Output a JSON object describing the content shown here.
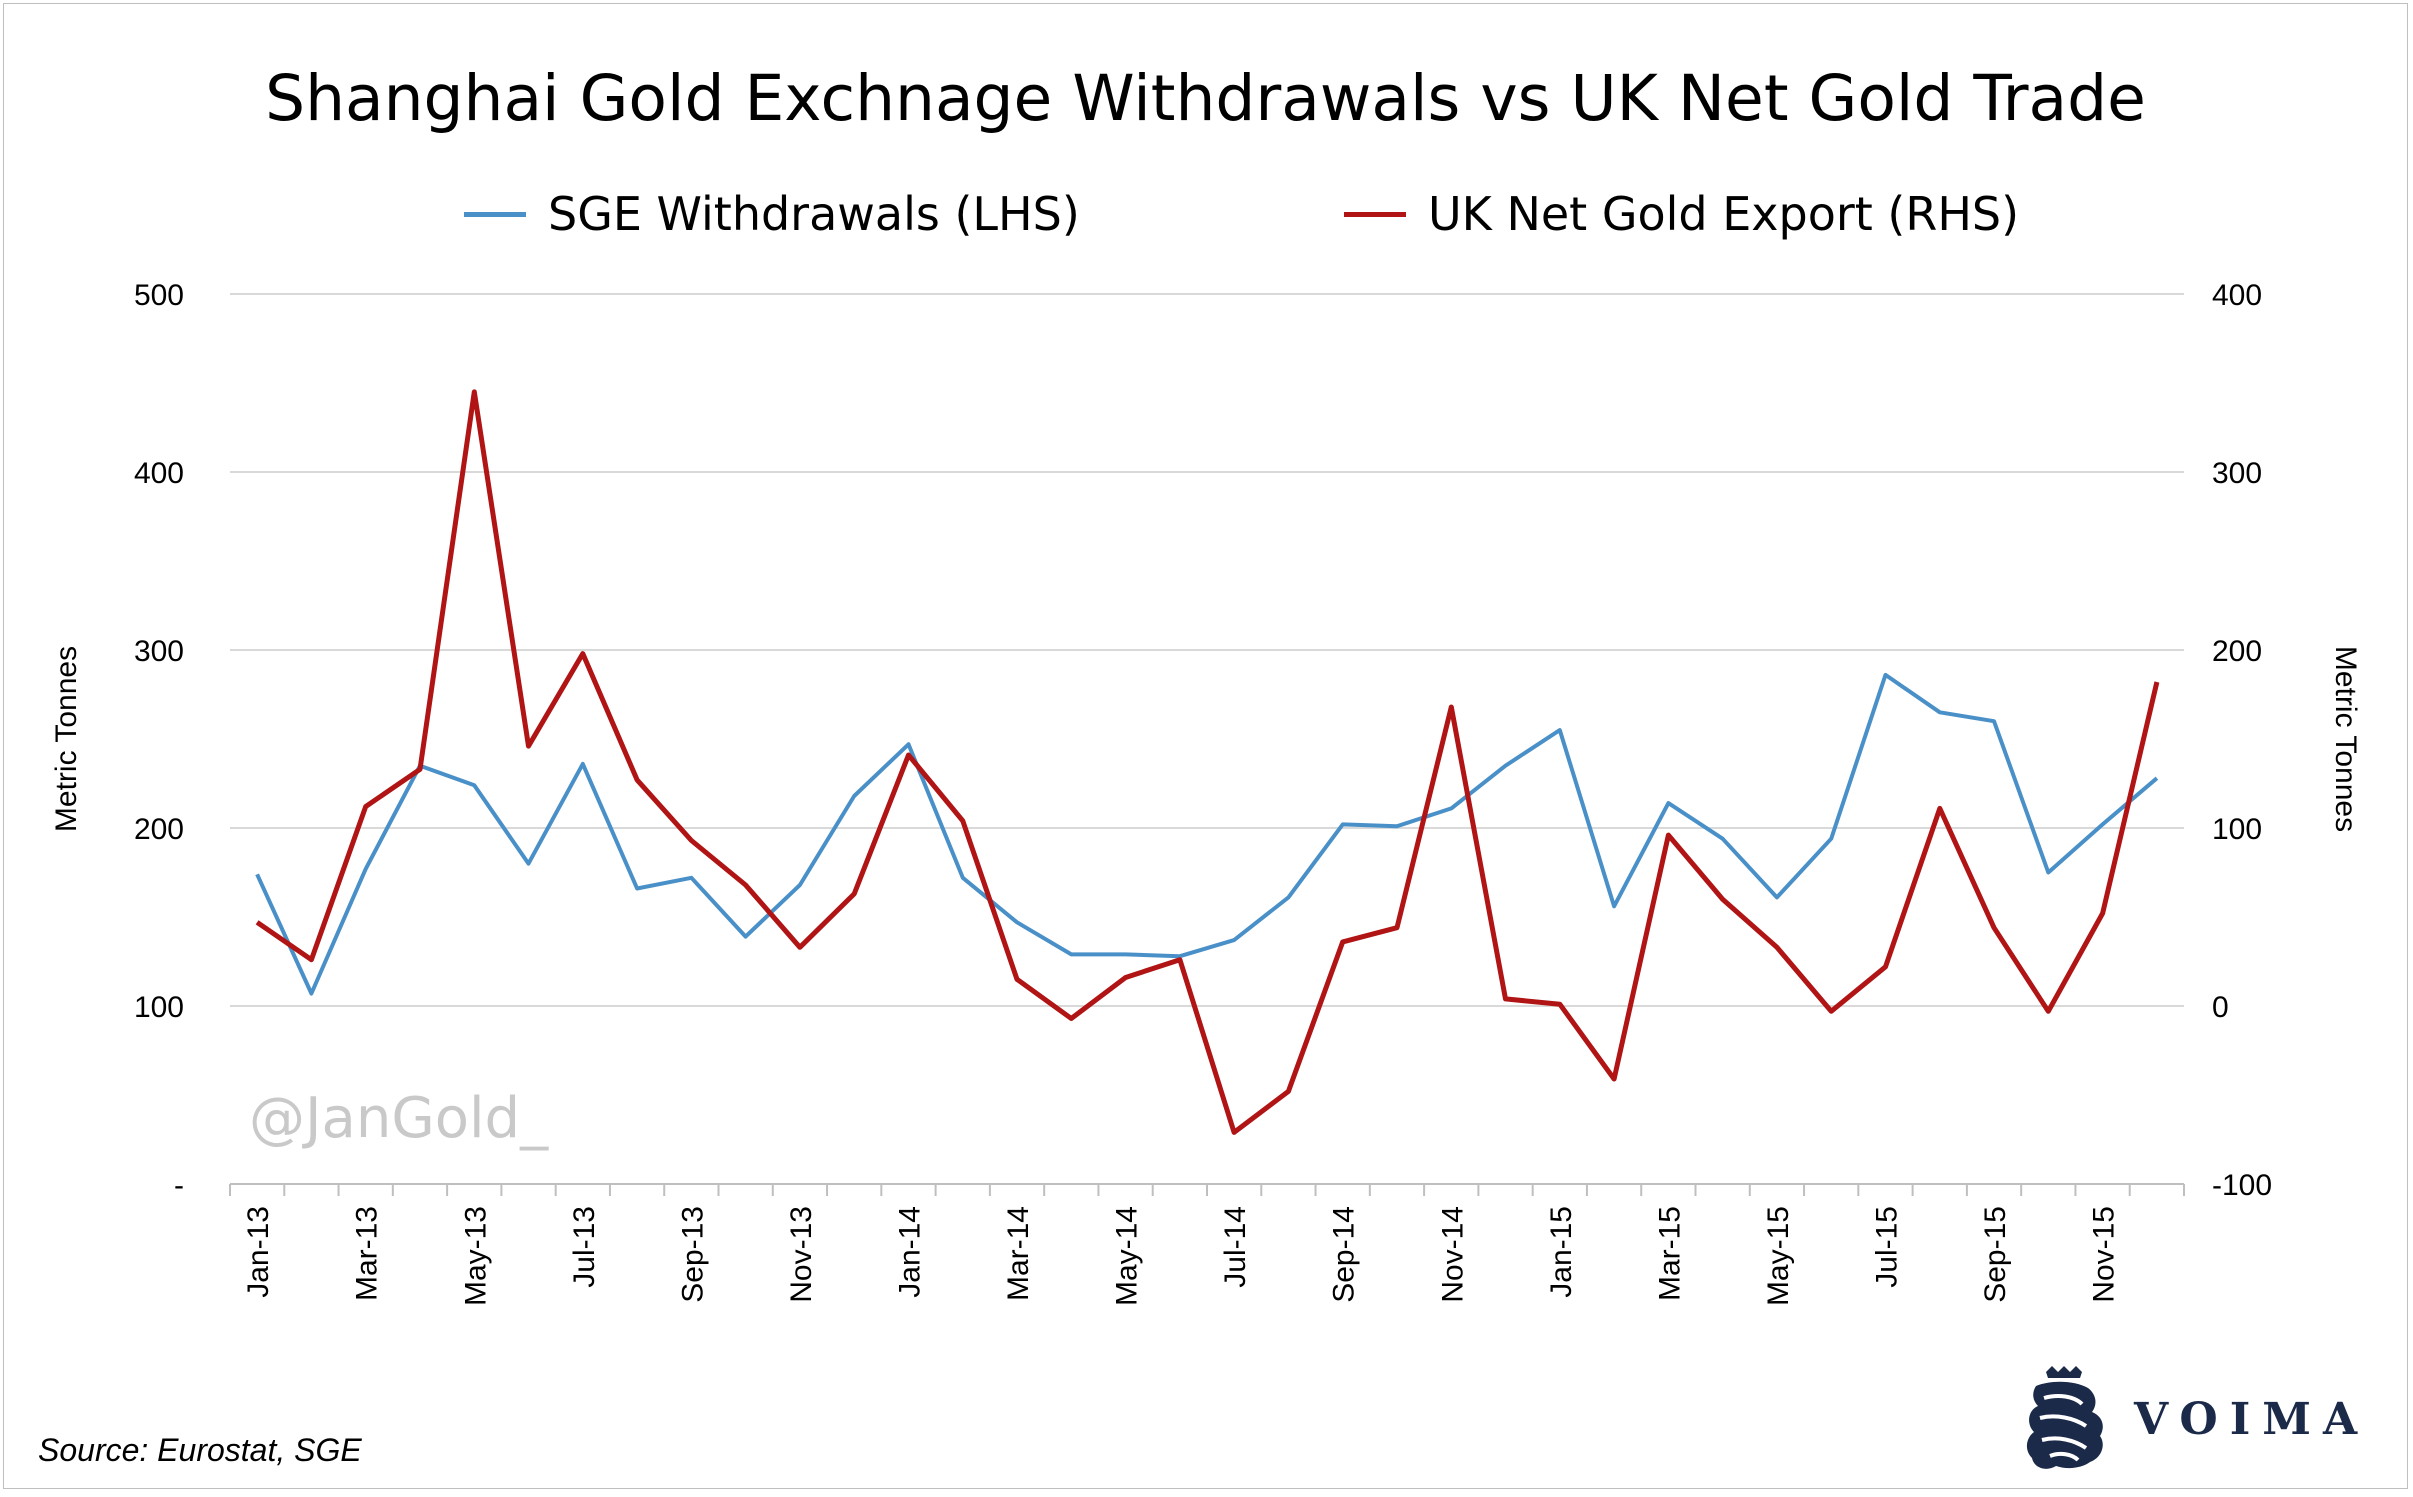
{
  "page": {
    "watermark": "@JanGold_",
    "source": "Source: Eurostat, SGE",
    "logo_text": "VOIMA"
  },
  "colors": {
    "sge": "#4a90c8",
    "uk": "#b01414",
    "grid": "#d9d9d9",
    "axis": "#bfbfbf",
    "logo": "#1c2a4a"
  },
  "chart_data": {
    "type": "line",
    "title": "Shanghai Gold Exchnage Withdrawals vs UK Net Gold Trade",
    "legend_placement": "top",
    "grid": true,
    "x": [
      "Jan-13",
      "Feb-13",
      "Mar-13",
      "Apr-13",
      "May-13",
      "Jun-13",
      "Jul-13",
      "Aug-13",
      "Sep-13",
      "Oct-13",
      "Nov-13",
      "Dec-13",
      "Jan-14",
      "Feb-14",
      "Mar-14",
      "Apr-14",
      "May-14",
      "Jun-14",
      "Jul-14",
      "Aug-14",
      "Sep-14",
      "Oct-14",
      "Nov-14",
      "Dec-14",
      "Jan-15",
      "Feb-15",
      "Mar-15",
      "Apr-15",
      "May-15",
      "Jun-15",
      "Jul-15",
      "Aug-15",
      "Sep-15",
      "Oct-15",
      "Nov-15",
      "Dec-15"
    ],
    "x_tick_labels": [
      "Jan-13",
      "Mar-13",
      "May-13",
      "Jul-13",
      "Sep-13",
      "Nov-13",
      "Jan-14",
      "Mar-14",
      "May-14",
      "Jul-14",
      "Sep-14",
      "Nov-14",
      "Jan-15",
      "Mar-15",
      "May-15",
      "Jul-15",
      "Sep-15",
      "Nov-15"
    ],
    "y_left": {
      "label": "Metric Tonnes",
      "ylim": [
        0,
        500
      ],
      "ticks": [
        "-",
        "100",
        "200",
        "300",
        "400",
        "500"
      ]
    },
    "y_right": {
      "label": "Metric Tonnes",
      "ylim": [
        -100,
        400
      ],
      "ticks": [
        "-100",
        "0",
        "100",
        "200",
        "300",
        "400"
      ]
    },
    "series": [
      {
        "name": "SGE Withdrawals (LHS)",
        "axis": "left",
        "values": [
          174,
          107,
          177,
          235,
          224,
          180,
          236,
          166,
          172,
          139,
          168,
          218,
          247,
          172,
          147,
          129,
          129,
          128,
          137,
          161,
          202,
          201,
          211,
          235,
          255,
          156,
          214,
          194,
          161,
          194,
          286,
          265,
          260,
          175,
          202,
          228
        ]
      },
      {
        "name": "UK Net Gold Export (RHS)",
        "axis": "right",
        "values": [
          47,
          26,
          112,
          133,
          345,
          146,
          198,
          127,
          93,
          68,
          33,
          63,
          141,
          104,
          15,
          -7,
          16,
          26,
          -71,
          -48,
          36,
          44,
          168,
          4,
          1,
          -41,
          96,
          60,
          33,
          -3,
          22,
          111,
          44,
          -3,
          52,
          182
        ]
      }
    ]
  }
}
